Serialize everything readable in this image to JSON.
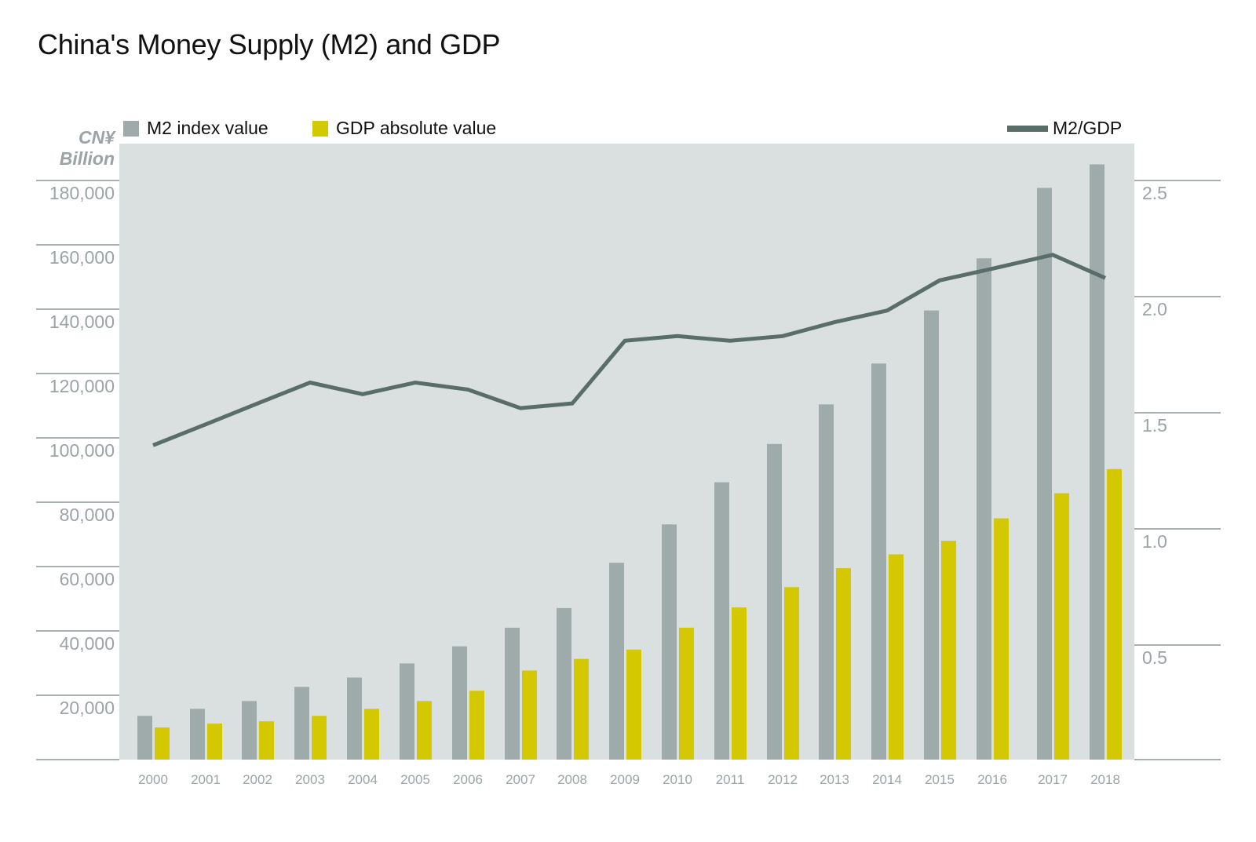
{
  "chart_data": {
    "type": "bar+line",
    "title": "China's Money Supply (M2) and GDP",
    "ylabel": "CN¥ Billion",
    "categories": [
      "2000",
      "2001",
      "2002",
      "2003",
      "2004",
      "2005",
      "2006",
      "2007",
      "2008",
      "2009",
      "2010",
      "2011",
      "2012",
      "2013",
      "2014",
      "2015",
      "2016",
      "2017",
      "2018"
    ],
    "series": [
      {
        "name": "M2 index value",
        "type": "bar",
        "axis": "left",
        "color": "#9fabab",
        "values": [
          13600,
          15800,
          18200,
          22600,
          25500,
          29900,
          35200,
          41000,
          47100,
          61200,
          73100,
          86200,
          98100,
          110400,
          123100,
          139600,
          155800,
          177700,
          185000
        ]
      },
      {
        "name": "GDP absolute value",
        "type": "bar",
        "axis": "left",
        "color": "#d4c800",
        "values": [
          10000,
          11200,
          11900,
          13600,
          15800,
          18200,
          21400,
          27700,
          31300,
          34200,
          41000,
          47300,
          53600,
          59500,
          63800,
          68000,
          75000,
          82800,
          90300
        ]
      },
      {
        "name": "M2/GDP",
        "type": "line",
        "axis": "right",
        "color": "#5a6e69",
        "values": [
          1.36,
          1.45,
          1.54,
          1.63,
          1.58,
          1.63,
          1.6,
          1.52,
          1.54,
          1.81,
          1.83,
          1.81,
          1.83,
          1.89,
          1.94,
          2.07,
          2.12,
          2.18,
          2.08
        ]
      }
    ],
    "left_axis": {
      "ylim": [
        0,
        180000
      ],
      "ticks": [
        "20,000",
        "40,000",
        "60,000",
        "80,000",
        "100,000",
        "120,000",
        "140,000",
        "160,000",
        "180,000"
      ]
    },
    "right_axis": {
      "ylim": [
        0,
        2.5
      ],
      "ticks": [
        "0.5",
        "1.0",
        "1.5",
        "2.0",
        "2.5"
      ]
    },
    "legend_placement": "top",
    "background": "#dadfe0"
  }
}
